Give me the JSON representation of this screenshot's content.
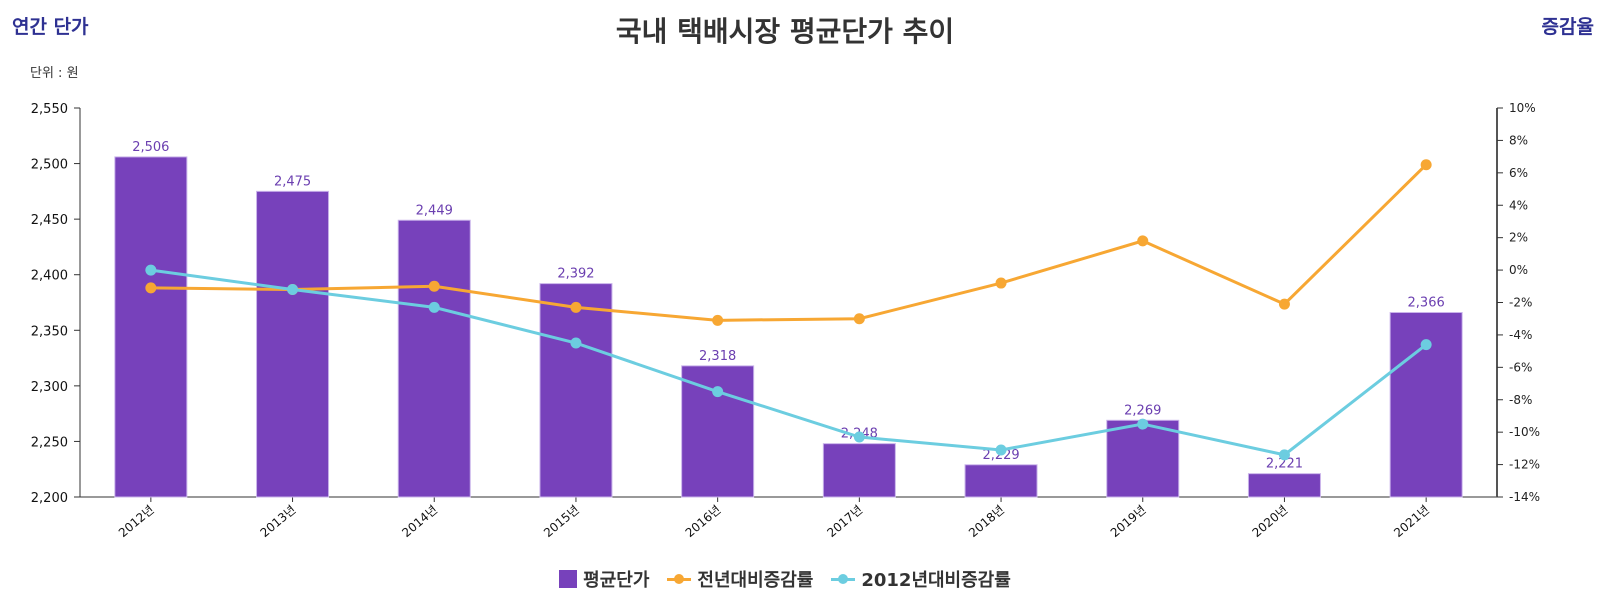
{
  "chart_data": {
    "type": "bar",
    "title": "국내 택배시장 평균단가 추이",
    "left_axis_title": "연간 단가",
    "right_axis_title": "증감율",
    "unit": "단위 : 원",
    "categories": [
      "2012년",
      "2013년",
      "2014년",
      "2015년",
      "2016년",
      "2017년",
      "2018년",
      "2019년",
      "2020년",
      "2021년"
    ],
    "series": [
      {
        "name": "평균단가",
        "type": "bar",
        "axis": "left",
        "color": "#7741bb",
        "values": [
          2506,
          2475,
          2449,
          2392,
          2318,
          2248,
          2229,
          2269,
          2221,
          2366
        ],
        "labels": [
          "2,506",
          "2,475",
          "2,449",
          "2,392",
          "2,318",
          "2,248",
          "2,229",
          "2,269",
          "2,221",
          "2,366"
        ]
      },
      {
        "name": "전년대비증감률",
        "type": "line",
        "axis": "right",
        "color": "#f7a733",
        "values": [
          -1.1,
          -1.2,
          -1.0,
          -2.3,
          -3.1,
          -3.0,
          -0.8,
          1.8,
          -2.1,
          6.5
        ]
      },
      {
        "name": "2012년대비증감률",
        "type": "line",
        "axis": "right",
        "color": "#6ccde0",
        "values": [
          0,
          -1.2,
          -2.3,
          -4.5,
          -7.5,
          -10.3,
          -11.1,
          -9.5,
          -11.4,
          -4.6
        ]
      }
    ],
    "left_axis": {
      "min": 2200,
      "max": 2550,
      "step": 50,
      "ticks": [
        "2,200",
        "2,250",
        "2,300",
        "2,350",
        "2,400",
        "2,450",
        "2,500",
        "2,550"
      ]
    },
    "right_axis": {
      "min": -14,
      "max": 10,
      "step": 2,
      "ticks": [
        "-14%",
        "-12%",
        "-10%",
        "-8%",
        "-6%",
        "-4%",
        "-2%",
        "0%",
        "2%",
        "4%",
        "6%",
        "8%",
        "10%"
      ]
    },
    "legend_position": "bottom",
    "grid": false
  }
}
